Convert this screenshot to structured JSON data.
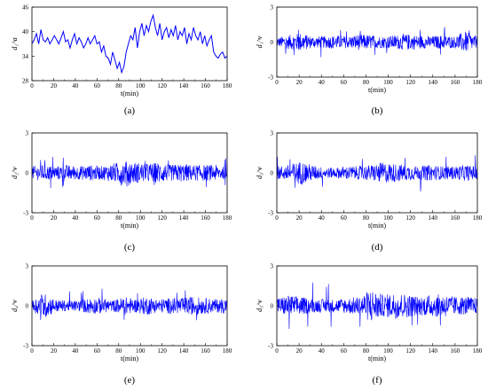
{
  "chart_data": [
    {
      "type": "line",
      "caption": "(a)",
      "ylabel": "d₁^a",
      "xlabel": "t(min)",
      "xlim": [
        0,
        180
      ],
      "ylim": [
        28,
        46
      ],
      "x_ticks": [
        "0",
        "20",
        "40",
        "60",
        "80",
        "100",
        "120",
        "140",
        "160",
        "180"
      ],
      "y_ticks": [
        "28",
        "34",
        "40",
        "46"
      ],
      "color": "#0000ff",
      "series": [
        {
          "values": [
            37,
            38,
            39.5,
            37,
            40.5,
            38,
            37.5,
            38.5,
            37,
            38,
            39,
            38,
            37,
            38.5,
            40,
            37.5,
            38,
            36,
            38,
            39.5,
            37,
            38.5,
            37.5,
            36,
            37,
            38.5,
            37,
            38,
            39,
            37,
            37.5,
            35,
            36.5,
            34,
            33.5,
            32,
            35,
            33,
            31,
            32.5,
            30,
            31.5,
            35,
            37,
            39,
            38,
            41,
            36,
            40,
            42,
            39,
            41.5,
            40,
            42.5,
            44,
            41,
            39,
            42,
            38,
            40,
            41,
            38.5,
            40.5,
            39,
            41.5,
            38,
            40,
            39,
            41,
            37,
            39.5,
            38,
            41,
            39,
            38,
            40,
            37,
            39,
            36.5,
            38,
            39,
            35,
            34,
            33.5,
            34.5,
            35,
            33.5,
            34
          ]
        }
      ]
    },
    {
      "type": "line",
      "caption": "(b)",
      "ylabel": "d₁^v",
      "xlabel": "t(min)",
      "xlim": [
        0,
        180
      ],
      "ylim": [
        -3,
        3
      ],
      "x_ticks": [
        "0",
        "20",
        "40",
        "60",
        "80",
        "100",
        "120",
        "140",
        "160",
        "180"
      ],
      "y_ticks": [
        "-3",
        "0",
        "3"
      ],
      "color": "#0000ff",
      "amplitude_profile": [
        0.4,
        0.6,
        0.8,
        0.5,
        0.5,
        0.6,
        0.5,
        0.7,
        0.6,
        0.5,
        0.6,
        0.7,
        0.6,
        0.5,
        0.6,
        0.5,
        0.9,
        0.5
      ],
      "peak": 1.3
    },
    {
      "type": "line",
      "caption": "(c)",
      "ylabel": "d₂^v",
      "xlabel": "t(min)",
      "xlim": [
        0,
        180
      ],
      "ylim": [
        -3,
        3
      ],
      "x_ticks": [
        "0",
        "20",
        "40",
        "60",
        "80",
        "100",
        "120",
        "140",
        "160",
        "180"
      ],
      "y_ticks": [
        "-3",
        "0",
        "3"
      ],
      "color": "#0000ff",
      "amplitude_profile": [
        0.5,
        0.6,
        0.5,
        0.6,
        0.5,
        0.6,
        0.5,
        0.7,
        0.9,
        0.8,
        0.7,
        0.8,
        0.6,
        0.7,
        0.6,
        0.6,
        0.6,
        0.4
      ],
      "peak": 1.2
    },
    {
      "type": "line",
      "caption": "(d)",
      "ylabel": "d₃^v",
      "xlabel": "t(min)",
      "xlim": [
        0,
        180
      ],
      "ylim": [
        -3,
        3
      ],
      "x_ticks": [
        "0",
        "20",
        "40",
        "60",
        "80",
        "100",
        "120",
        "140",
        "160",
        "180"
      ],
      "y_ticks": [
        "-3",
        "0",
        "3"
      ],
      "color": "#0000ff",
      "amplitude_profile": [
        0.5,
        0.6,
        0.9,
        0.6,
        0.4,
        0.4,
        0.5,
        0.5,
        0.6,
        0.8,
        0.7,
        0.6,
        0.5,
        0.6,
        0.5,
        0.5,
        0.6,
        0.5
      ],
      "peak": 1.4
    },
    {
      "type": "line",
      "caption": "(e)",
      "ylabel": "d₄^v",
      "xlabel": "t(min)",
      "xlim": [
        0,
        180
      ],
      "ylim": [
        -3,
        3
      ],
      "x_ticks": [
        "0",
        "20",
        "40",
        "60",
        "80",
        "100",
        "120",
        "140",
        "160",
        "180"
      ],
      "y_ticks": [
        "-3",
        "0",
        "3"
      ],
      "color": "#0000ff",
      "amplitude_profile": [
        0.4,
        1.0,
        0.5,
        0.4,
        0.4,
        0.6,
        0.6,
        0.4,
        0.7,
        0.5,
        0.7,
        0.5,
        0.6,
        0.6,
        0.7,
        0.6,
        0.5,
        0.6
      ],
      "peak": 1.3
    },
    {
      "type": "line",
      "caption": "(f)",
      "ylabel": "d₅^v",
      "xlabel": "t(min)",
      "xlim": [
        0,
        180
      ],
      "ylim": [
        -3,
        3
      ],
      "x_ticks": [
        "0",
        "20",
        "40",
        "60",
        "80",
        "100",
        "120",
        "140",
        "160",
        "180"
      ],
      "y_ticks": [
        "-3",
        "0",
        "3"
      ],
      "color": "#0000ff",
      "amplitude_profile": [
        0.6,
        0.8,
        0.7,
        0.5,
        0.5,
        0.5,
        0.6,
        0.7,
        1.3,
        0.8,
        1.0,
        0.9,
        0.7,
        0.8,
        0.9,
        0.7,
        0.7,
        0.6
      ],
      "peak": 1.8
    }
  ]
}
